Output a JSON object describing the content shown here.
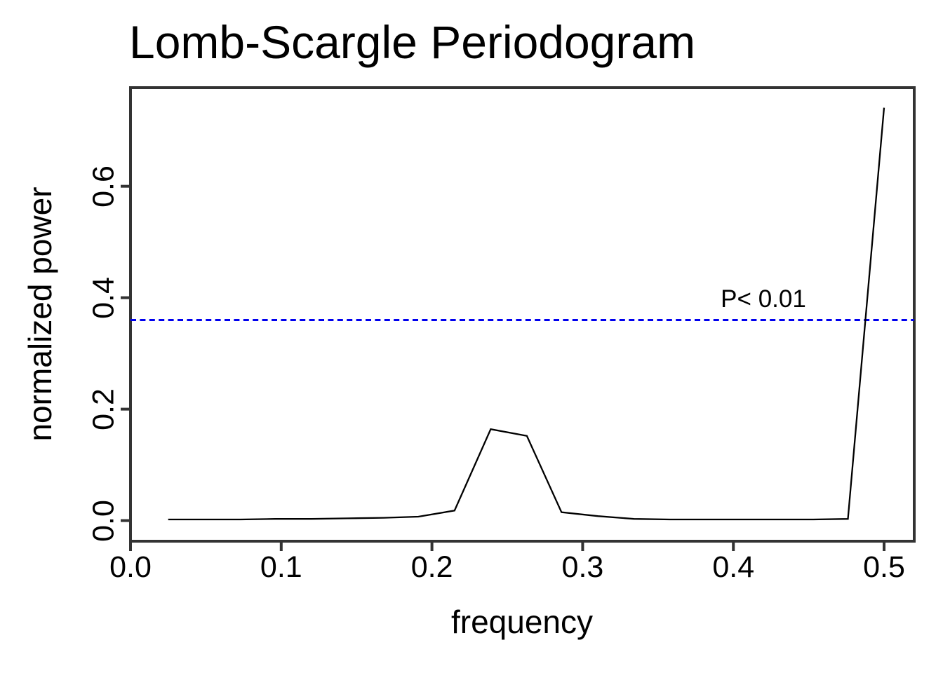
{
  "page": {
    "background": "#ffffff"
  },
  "colors": {
    "axis": "#333333",
    "text": "#000000",
    "series_line": "#000000",
    "significance_line": "#0000EE"
  },
  "chart_data": {
    "type": "line",
    "title": "Lomb-Scargle Periodogram",
    "xlabel": "frequency",
    "ylabel": "normalized power",
    "xlim": [
      0,
      0.52
    ],
    "ylim": [
      -0.037,
      0.777
    ],
    "grid": false,
    "legend": "none",
    "x_ticks": {
      "values": [
        0.0,
        0.1,
        0.2,
        0.3,
        0.4,
        0.5
      ],
      "labels": [
        "0.0",
        "0.1",
        "0.2",
        "0.3",
        "0.4",
        "0.5"
      ]
    },
    "y_ticks": {
      "values": [
        0.0,
        0.2,
        0.4,
        0.6
      ],
      "labels": [
        "0.0",
        "0.2",
        "0.4",
        "0.6"
      ]
    },
    "series": [
      {
        "name": "periodogram",
        "color": "#000000",
        "x": [
          0.025,
          0.049,
          0.073,
          0.096,
          0.12,
          0.144,
          0.168,
          0.191,
          0.215,
          0.239,
          0.263,
          0.286,
          0.31,
          0.334,
          0.358,
          0.381,
          0.405,
          0.429,
          0.453,
          0.476,
          0.5
        ],
        "y": [
          0.002,
          0.002,
          0.002,
          0.003,
          0.003,
          0.004,
          0.005,
          0.007,
          0.018,
          0.164,
          0.152,
          0.015,
          0.008,
          0.003,
          0.002,
          0.002,
          0.002,
          0.002,
          0.002,
          0.003,
          0.741
        ]
      }
    ],
    "significance_line": {
      "value": 0.36,
      "style": "dashed",
      "color": "#0000EE",
      "label": "P< 0.01"
    }
  }
}
